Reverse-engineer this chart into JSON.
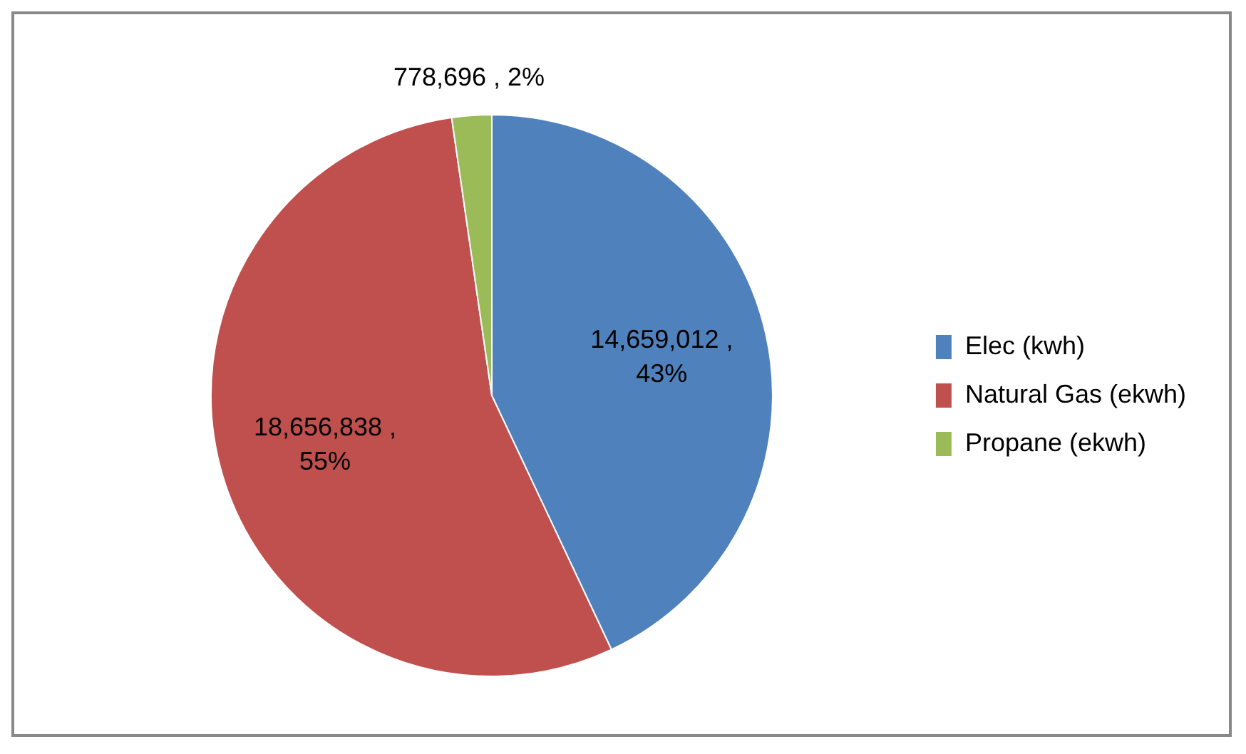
{
  "chart_data": {
    "type": "pie",
    "categories": [
      "Elec (kwh)",
      "Natural Gas (ekwh)",
      "Propane (ekwh)"
    ],
    "values": [
      14659012,
      18656838,
      778696
    ],
    "colors": [
      "#4f81bd",
      "#c0504d",
      "#9bbb59"
    ],
    "value_labels": [
      "14,659,012 , 43%",
      "18,656,838 , 55%",
      "778,696 , 2%"
    ],
    "legend": "right"
  }
}
